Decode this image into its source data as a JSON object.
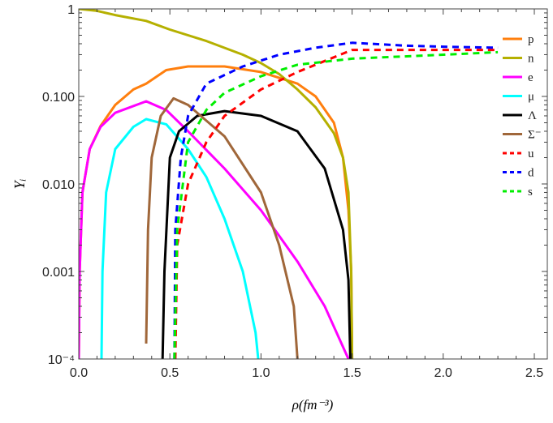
{
  "chart_data": {
    "type": "line",
    "title": "",
    "xlabel": "ρ(fm⁻³)",
    "ylabel": "Yᵢ",
    "xlim": [
      0,
      2.6
    ],
    "ylim": [
      0.0001,
      1
    ],
    "yscale": "log",
    "grid": false,
    "legend_placement": "right",
    "x_ticks": [
      "0.0",
      "0.5",
      "1.0",
      "1.5",
      "2.0",
      "2.5"
    ],
    "x_tick_values": [
      0,
      0.5,
      1.0,
      1.5,
      2.0,
      2.5
    ],
    "y_ticks": [
      "1",
      "0.100",
      "0.010",
      "0.001",
      "10⁻⁴"
    ],
    "y_tick_values": [
      1,
      0.1,
      0.01,
      0.001,
      0.0001
    ],
    "series": [
      {
        "name": "p",
        "color": "#ff7f0e",
        "dashed": false,
        "x": [
          0,
          0.005,
          0.02,
          0.06,
          0.12,
          0.2,
          0.3,
          0.37,
          0.48,
          0.6,
          0.8,
          1.0,
          1.2,
          1.3,
          1.4,
          1.45,
          1.48,
          1.495,
          1.5
        ],
        "y": [
          0.0001,
          0.001,
          0.008,
          0.025,
          0.046,
          0.08,
          0.12,
          0.14,
          0.2,
          0.22,
          0.22,
          0.19,
          0.14,
          0.1,
          0.05,
          0.02,
          0.005,
          0.001,
          0.0001
        ]
      },
      {
        "name": "n",
        "color": "#b5b000",
        "dashed": false,
        "x": [
          0,
          0.1,
          0.2,
          0.37,
          0.5,
          0.7,
          0.9,
          1.0,
          1.1,
          1.2,
          1.3,
          1.4,
          1.45,
          1.48,
          1.495,
          1.5
        ],
        "y": [
          1,
          0.95,
          0.85,
          0.73,
          0.58,
          0.43,
          0.3,
          0.24,
          0.18,
          0.12,
          0.075,
          0.038,
          0.02,
          0.008,
          0.001,
          0.0001
        ]
      },
      {
        "name": "e",
        "color": "#ff00ff",
        "dashed": false,
        "x": [
          0,
          0.005,
          0.02,
          0.06,
          0.12,
          0.2,
          0.37,
          0.48,
          0.6,
          0.8,
          1.0,
          1.2,
          1.35,
          1.48
        ],
        "y": [
          0.0001,
          0.001,
          0.008,
          0.025,
          0.045,
          0.065,
          0.088,
          0.07,
          0.04,
          0.015,
          0.005,
          0.0013,
          0.0004,
          0.0001
        ]
      },
      {
        "name": "μ",
        "color": "#00ffff",
        "dashed": false,
        "x": [
          0.125,
          0.13,
          0.15,
          0.2,
          0.3,
          0.37,
          0.48,
          0.6,
          0.7,
          0.8,
          0.9,
          0.97,
          0.985
        ],
        "y": [
          0.0001,
          0.001,
          0.008,
          0.025,
          0.045,
          0.055,
          0.048,
          0.025,
          0.012,
          0.004,
          0.001,
          0.0002,
          0.0001
        ]
      },
      {
        "name": "Λ",
        "color": "#000000",
        "dashed": false,
        "x": [
          0.46,
          0.47,
          0.5,
          0.55,
          0.65,
          0.8,
          1.0,
          1.2,
          1.35,
          1.45,
          1.48,
          1.49
        ],
        "y": [
          0.0001,
          0.001,
          0.02,
          0.04,
          0.06,
          0.068,
          0.06,
          0.04,
          0.015,
          0.003,
          0.0008,
          0.0001
        ]
      },
      {
        "name": "Σ⁻",
        "color": "#a0673a",
        "dashed": false,
        "x": [
          0.37,
          0.38,
          0.4,
          0.45,
          0.52,
          0.6,
          0.8,
          1.0,
          1.1,
          1.18,
          1.2
        ],
        "y": [
          0.00015,
          0.003,
          0.02,
          0.06,
          0.095,
          0.08,
          0.035,
          0.008,
          0.002,
          0.0004,
          0.0001
        ]
      },
      {
        "name": "u",
        "color": "#ff0000",
        "dashed": true,
        "x": [
          0.53,
          0.54,
          0.6,
          0.7,
          0.8,
          1.0,
          1.2,
          1.4,
          1.5,
          2.0,
          2.3
        ],
        "y": [
          0.0001,
          0.002,
          0.01,
          0.03,
          0.06,
          0.12,
          0.19,
          0.28,
          0.34,
          0.34,
          0.34
        ]
      },
      {
        "name": "d",
        "color": "#0000ff",
        "dashed": true,
        "x": [
          0.525,
          0.53,
          0.56,
          0.6,
          0.7,
          0.9,
          1.1,
          1.3,
          1.5,
          1.8,
          2.0,
          2.3
        ],
        "y": [
          0.0001,
          0.003,
          0.02,
          0.06,
          0.14,
          0.22,
          0.3,
          0.36,
          0.41,
          0.38,
          0.37,
          0.36
        ]
      },
      {
        "name": "s",
        "color": "#00ee00",
        "dashed": true,
        "x": [
          0.525,
          0.54,
          0.6,
          0.7,
          0.8,
          1.0,
          1.2,
          1.5,
          2.0,
          2.3
        ],
        "y": [
          0.0001,
          0.003,
          0.03,
          0.07,
          0.11,
          0.17,
          0.23,
          0.27,
          0.3,
          0.32
        ]
      }
    ]
  }
}
